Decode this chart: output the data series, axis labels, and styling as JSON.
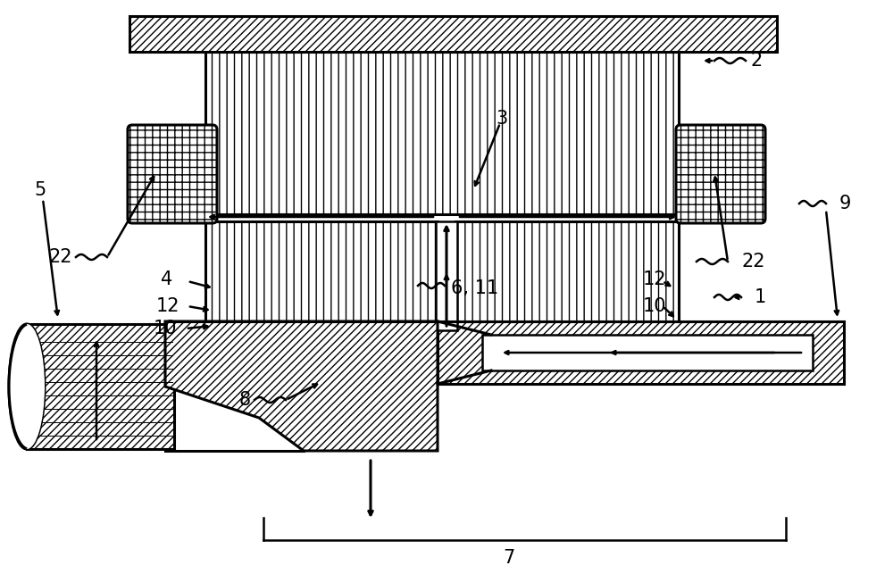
{
  "bg": "#ffffff",
  "lc": "#000000",
  "fig_w": 10.0,
  "fig_h": 6.43,
  "lw": 1.8,
  "lw2": 2.2,
  "fontsize": 15
}
